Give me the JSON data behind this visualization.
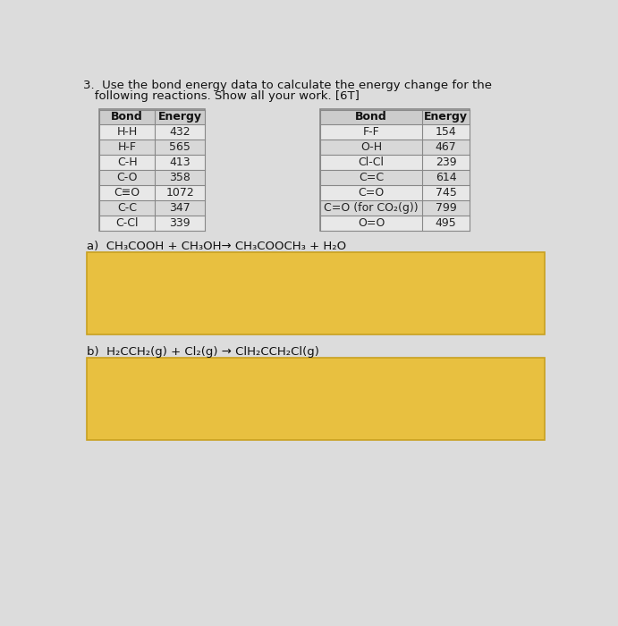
{
  "title_line1": "3.  Use the bond energy data to calculate the energy change for the",
  "title_line2": "   following reactions. Show all your work. [6T]",
  "table1_headers": [
    "Bond",
    "Energy"
  ],
  "table1_data": [
    [
      "H-H",
      "432"
    ],
    [
      "H-F",
      "565"
    ],
    [
      "C-H",
      "413"
    ],
    [
      "C-O",
      "358"
    ],
    [
      "C≡O",
      "1072"
    ],
    [
      "C-C",
      "347"
    ],
    [
      "C-Cl",
      "339"
    ]
  ],
  "table2_headers": [
    "Bond",
    "Energy"
  ],
  "table2_data": [
    [
      "F-F",
      "154"
    ],
    [
      "O-H",
      "467"
    ],
    [
      "Cl-Cl",
      "239"
    ],
    [
      "C=C",
      "614"
    ],
    [
      "C=O",
      "745"
    ],
    [
      "C=O (for CO₂(g))",
      "799"
    ],
    [
      "O=O",
      "495"
    ]
  ],
  "reaction_a": "a)  CH₃COOH + CH₃OH→ CH₃COOCH₃ + H₂O",
  "reaction_b": "b)  H₂CCH₂(g) + Cl₂(g) → ClH₂CCH₂Cl(g)",
  "bg_color": "#dcdcdc",
  "table_bg_even": "#e8e8e8",
  "table_bg_odd": "#d8d8d8",
  "table_header_bg": "#cccccc",
  "table_border_color": "#888888",
  "answer_box_color": "#e8c040",
  "answer_box_border": "#c8a020"
}
